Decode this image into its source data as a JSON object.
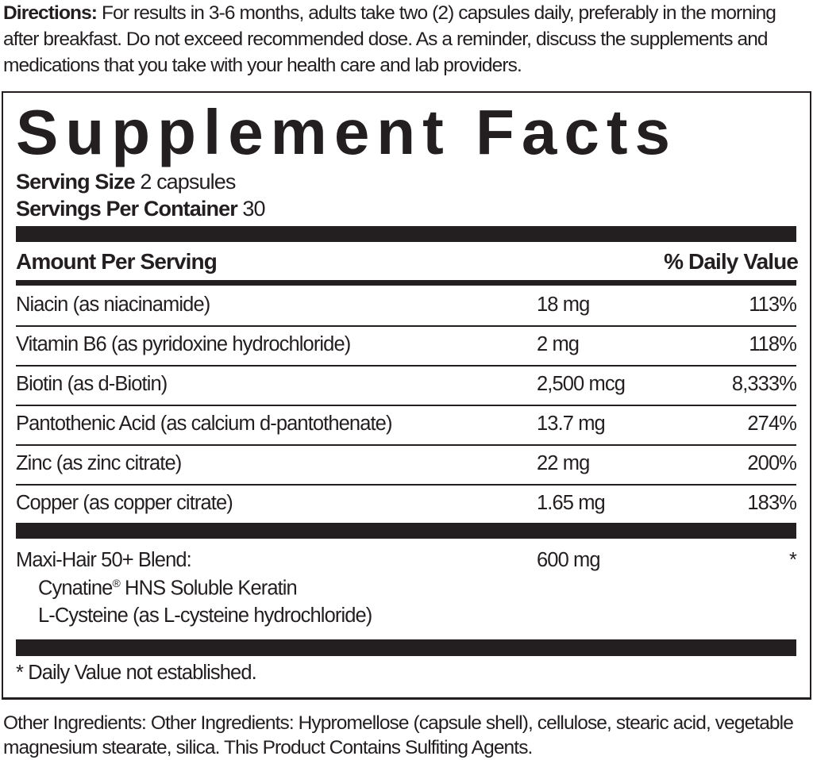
{
  "directions": {
    "label": "Directions:",
    "text": " For results in 3-6 months, adults take two (2) capsules daily, preferably in the morning after breakfast. Do not exceed recommended dose. As a reminder, discuss the supplements and medications that you take with your health care and lab providers."
  },
  "facts": {
    "title": "Supplement Facts",
    "serving_size_label": "Serving Size",
    "serving_size_value": " 2 capsules",
    "servings_label": "Servings Per Container",
    "servings_value": " 30",
    "amount_header": "Amount Per Serving",
    "dv_header": "% Daily Value",
    "nutrients": [
      {
        "name": "Niacin (as niacinamide)",
        "amount": "18 mg",
        "dv": "113%"
      },
      {
        "name": "Vitamin B6 (as pyridoxine hydrochloride)",
        "amount": "2 mg",
        "dv": "118%"
      },
      {
        "name": "Biotin (as d-Biotin)",
        "amount": "2,500 mcg",
        "dv": "8,333%"
      },
      {
        "name": "Pantothenic Acid (as calcium d-pantothenate)",
        "amount": "13.7 mg",
        "dv": "274%"
      },
      {
        "name": "Zinc (as zinc citrate)",
        "amount": "22 mg",
        "dv": "200%"
      },
      {
        "name": "Copper (as copper citrate)",
        "amount": "1.65 mg",
        "dv": "183%"
      }
    ],
    "blend": {
      "name": "Maxi-Hair 50+ Blend:",
      "amount": "600 mg",
      "dv": "*",
      "ingredients": [
        "Cynatine",
        "L-Cysteine (as L-cysteine hydrochloride)"
      ],
      "ingredient_1_mark": "®",
      "ingredient_1_rest": " HNS Soluble Keratin"
    },
    "footnote": "* Daily Value not established."
  },
  "other_ingredients": {
    "label": "Other Ingredients:",
    "text": " Other Ingredients: Hypromellose (capsule shell), cellulose, stearic acid, vegetable magnesium stearate, silica. This Product Contains Sulfiting Agents."
  }
}
